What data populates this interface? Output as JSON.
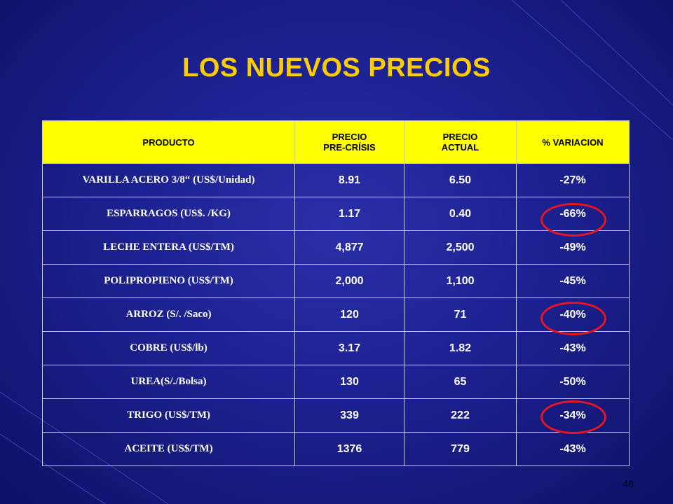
{
  "slide": {
    "title": "LOS NUEVOS PRECIOS",
    "page_number": "48"
  },
  "table": {
    "headers": {
      "product": "PRODUCTO",
      "pre_crisis_line1": "PRECIO",
      "pre_crisis_line2": "PRE-CRÍSIS",
      "current_line1": "PRECIO",
      "current_line2": "ACTUAL",
      "variation": "% VARIACION"
    },
    "rows": [
      {
        "product": "VARILLA ACERO 3/8“ (US$/Unidad)",
        "pre_crisis": "8.91",
        "current": "6.50",
        "variation": "-27%",
        "circled": false
      },
      {
        "product": "ESPARRAGOS (US$. /KG)",
        "pre_crisis": "1.17",
        "current": "0.40",
        "variation": "-66%",
        "circled": true
      },
      {
        "product": "LECHE ENTERA (US$/TM)",
        "pre_crisis": "4,877",
        "current": "2,500",
        "variation": "-49%",
        "circled": false
      },
      {
        "product": "POLIPROPIENO (US$/TM)",
        "pre_crisis": "2,000",
        "current": "1,100",
        "variation": "-45%",
        "circled": false
      },
      {
        "product": "ARROZ (S/. /Saco)",
        "pre_crisis": "120",
        "current": "71",
        "variation": "-40%",
        "circled": true
      },
      {
        "product": "COBRE (US$/lb)",
        "pre_crisis": "3.17",
        "current": "1.82",
        "variation": "-43%",
        "circled": false
      },
      {
        "product": "UREA(S/./Bolsa)",
        "pre_crisis": "130",
        "current": "65",
        "variation": "-50%",
        "circled": false
      },
      {
        "product": "TRIGO (US$/TM)",
        "pre_crisis": "339",
        "current": "222",
        "variation": "-34%",
        "circled": true
      },
      {
        "product": "ACEITE (US$/TM)",
        "pre_crisis": "1376",
        "current": "779",
        "variation": "-43%",
        "circled": false
      }
    ]
  },
  "colors": {
    "title": "#ffcc00",
    "header_background": "#ffff00",
    "highlight_circle": "#e8141f",
    "slide_background": "#1c2190"
  }
}
